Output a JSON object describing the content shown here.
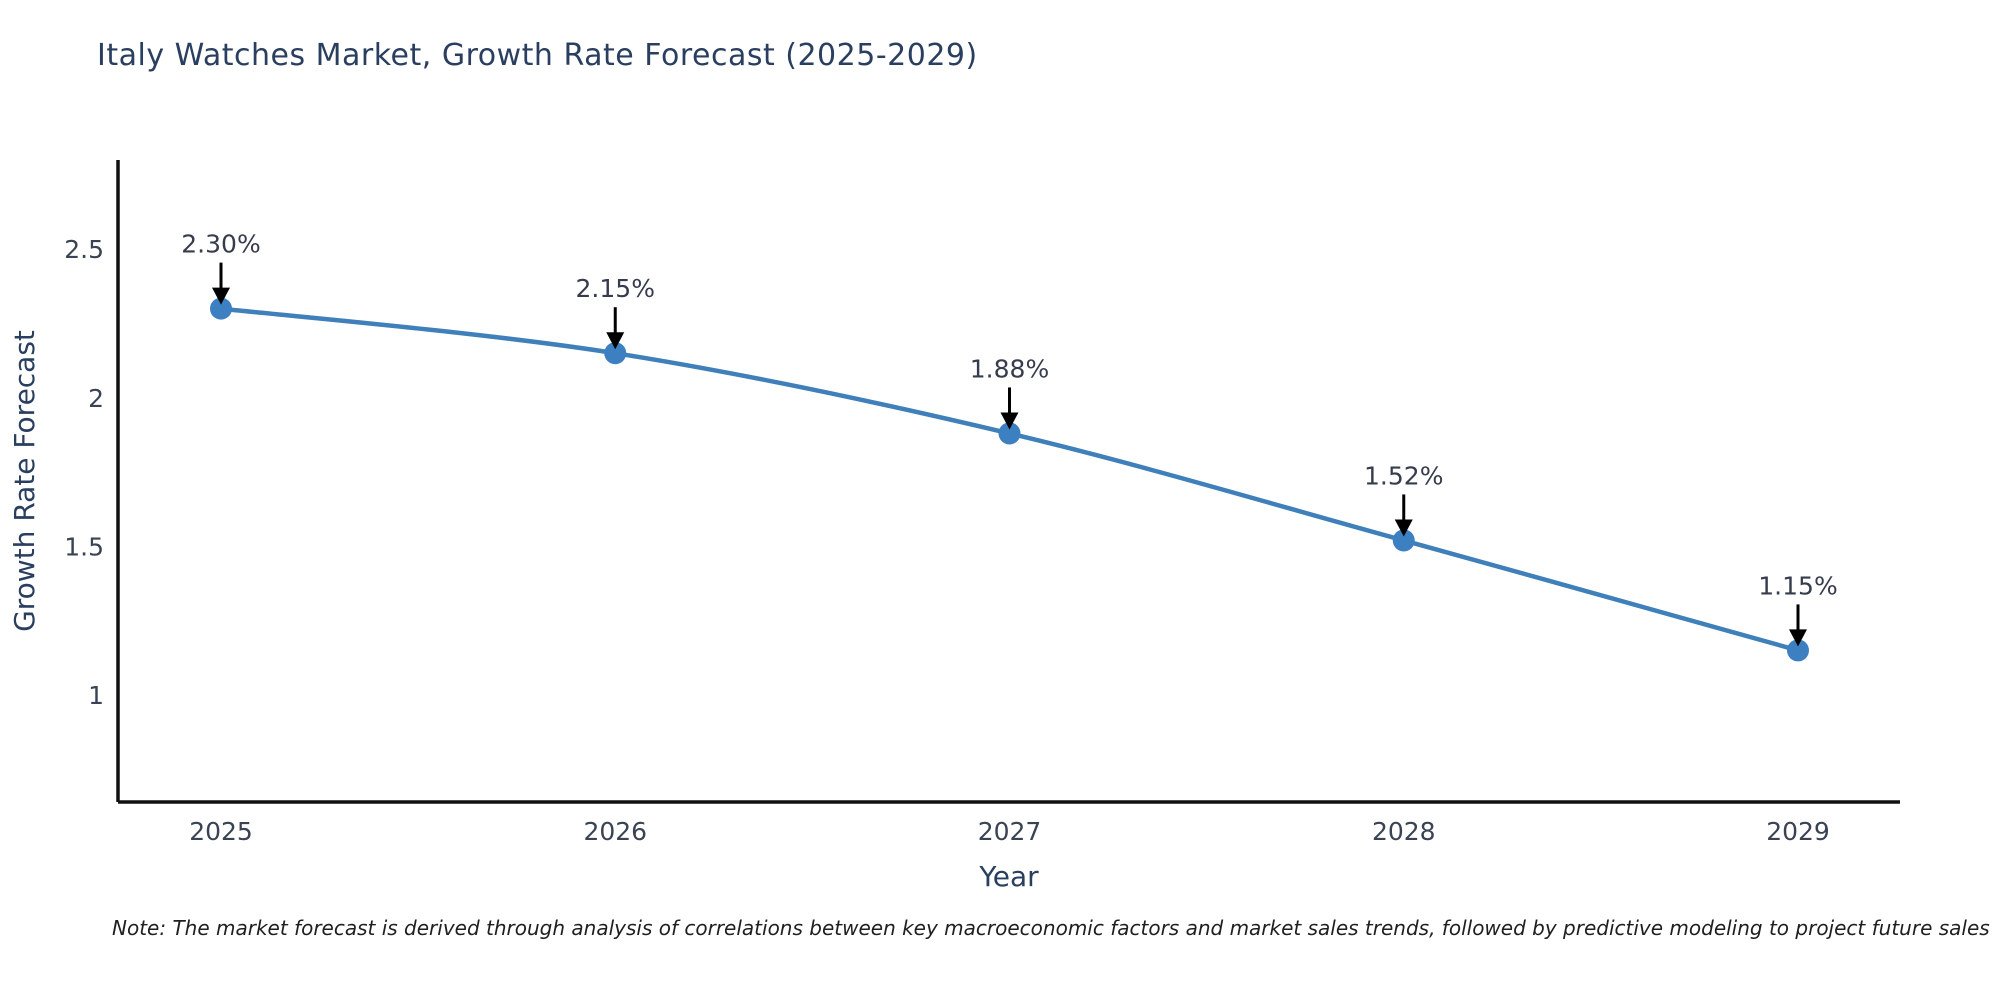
{
  "title": "Italy Watches Market, Growth Rate Forecast (2025-2029)",
  "note": "Note: The market forecast is derived through analysis of correlations between key macroeconomic factors and market sales trends, followed by predictive modeling to project future sales",
  "chart_data": {
    "type": "line",
    "title": "Italy Watches Market, Growth Rate Forecast (2025-2029)",
    "xlabel": "Year",
    "ylabel": "Growth Rate Forecast",
    "categories": [
      "2025",
      "2026",
      "2027",
      "2028",
      "2029"
    ],
    "values": [
      2.3,
      2.15,
      1.88,
      1.52,
      1.15
    ],
    "point_labels": [
      "2.30%",
      "2.15%",
      "1.88%",
      "1.52%",
      "1.15%"
    ],
    "yticks": [
      2.5,
      2,
      1.5,
      1
    ],
    "ytick_labels": [
      "2.5",
      "2",
      "1.5",
      "1"
    ],
    "ylim": [
      0.64,
      2.8
    ],
    "grid": false,
    "legend": "none",
    "line_shape": "spline",
    "annotations_have_arrows": true,
    "colors": {
      "line": "#3f7fba",
      "marker": "#3d80c2",
      "axis": "#111111",
      "arrow": "#000000",
      "title_text": "#2a3f5f",
      "axis_title_text": "#2a3f5f",
      "tick_text": "#3a4354",
      "annotation_text": "#363c4d",
      "note_text": "#1f1f1f",
      "background": "#ffffff"
    }
  }
}
